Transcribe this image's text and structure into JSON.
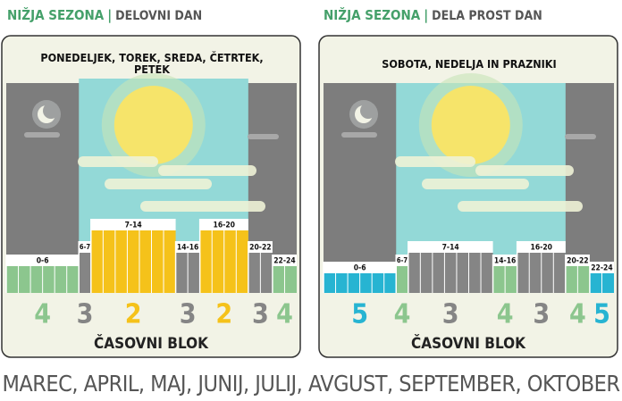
{
  "headers": [
    {
      "season": "NIŽJA SEZONA",
      "separator": "|",
      "day": "DELOVNI DAN"
    },
    {
      "season": "NIŽJA SEZONA",
      "separator": "|",
      "day": "DELA PROST DAN"
    }
  ],
  "panels": [
    {
      "title": "PONEDELJEK, TOREK, SREDA, ČETRTEK, PETEK",
      "axis_label": "ČASOVNI BLOK",
      "segments": [
        {
          "hours": "0-6",
          "block": 4
        },
        {
          "hours": "6-7",
          "block": 3
        },
        {
          "hours": "7-14",
          "block": 2
        },
        {
          "hours": "14-16",
          "block": 3
        },
        {
          "hours": "16-20",
          "block": 2
        },
        {
          "hours": "20-22",
          "block": 3
        },
        {
          "hours": "22-24",
          "block": 4
        }
      ]
    },
    {
      "title": "SOBOTA, NEDELJA IN PRAZNIKI",
      "axis_label": "ČASOVNI BLOK",
      "segments": [
        {
          "hours": "0-6",
          "block": 5
        },
        {
          "hours": "6-7",
          "block": 4
        },
        {
          "hours": "7-14",
          "block": 3
        },
        {
          "hours": "14-16",
          "block": 4
        },
        {
          "hours": "16-20",
          "block": 3
        },
        {
          "hours": "20-22",
          "block": 4
        },
        {
          "hours": "22-24",
          "block": 5
        }
      ]
    }
  ],
  "block_colors": {
    "2": "#f5c21a",
    "3": "#858585",
    "4": "#8cc68e",
    "5": "#27b4d2"
  },
  "footer": "MAREC, APRIL, MAJ, JUNIJ, JULIJ, AVGUST, SEPTEMBER, OKTOBER"
}
